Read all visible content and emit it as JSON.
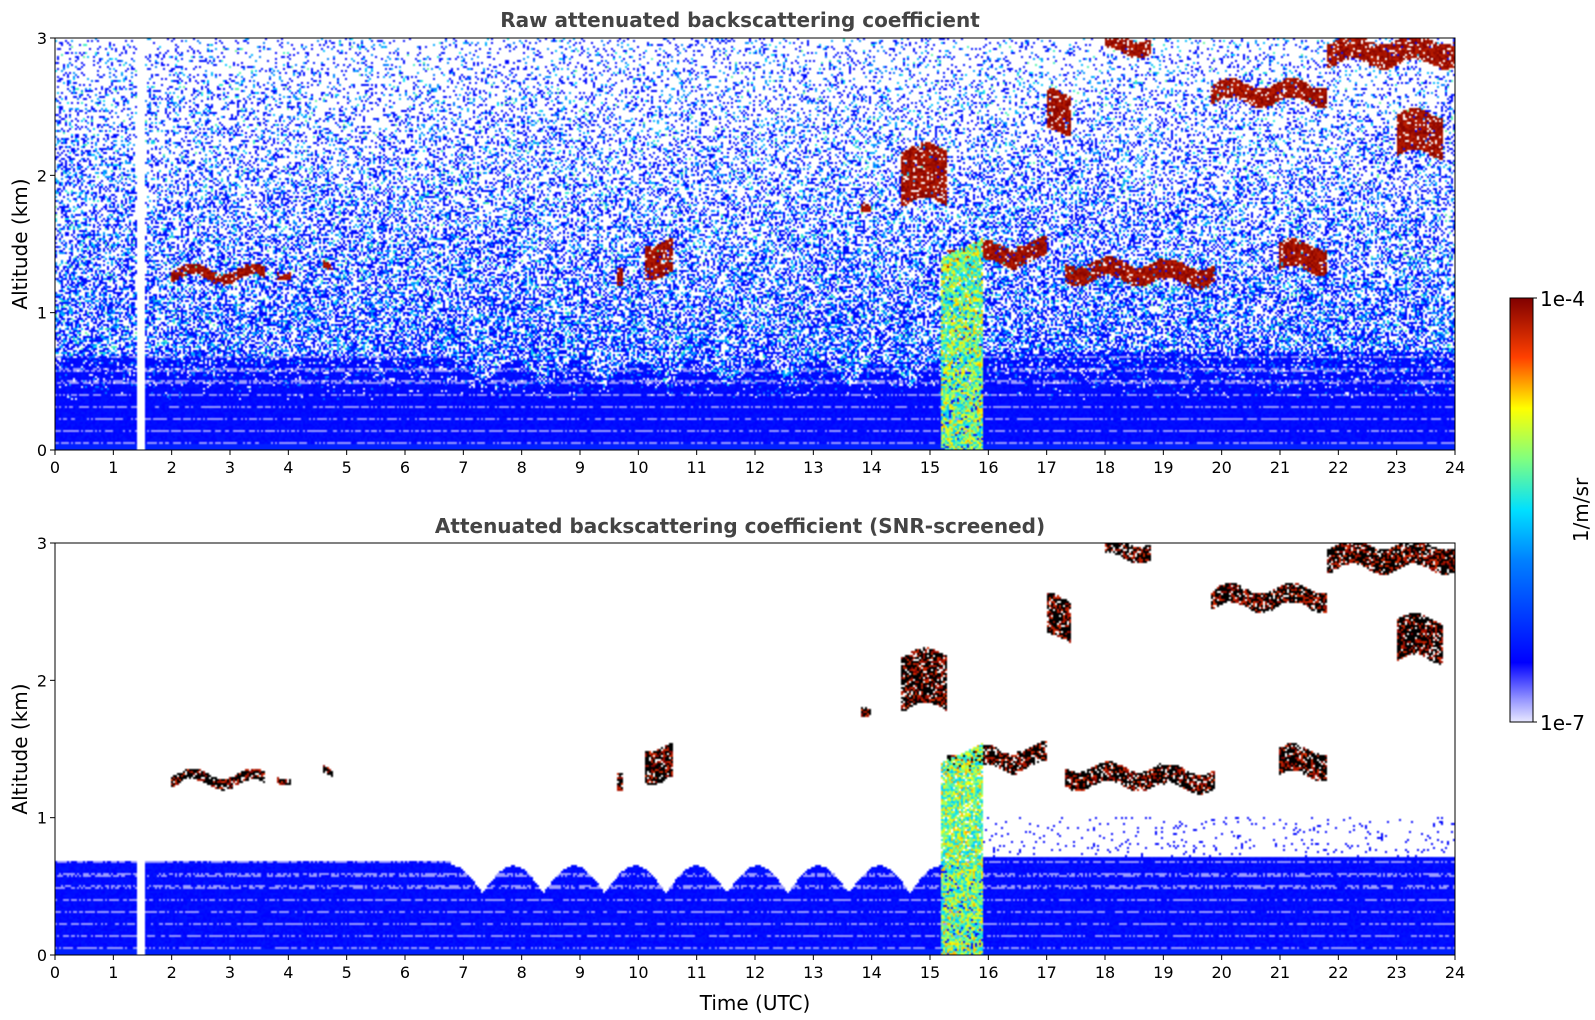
{
  "chart_data": [
    {
      "type": "heatmap",
      "title": "Raw attenuated backscattering coefficient",
      "xlabel": "",
      "ylabel": "Altitude (km)",
      "xlim": [
        0,
        24
      ],
      "ylim": [
        0,
        3
      ],
      "xticks": [
        0,
        1,
        2,
        3,
        4,
        5,
        6,
        7,
        8,
        9,
        10,
        11,
        12,
        13,
        14,
        15,
        16,
        17,
        18,
        19,
        20,
        21,
        22,
        23,
        24
      ],
      "yticks": [
        0,
        1,
        2,
        3
      ],
      "screened": false,
      "features": {
        "data_gap": {
          "start": 1.42,
          "end": 1.55
        },
        "cloud_layers": [
          {
            "t0": 2.0,
            "t1": 3.6,
            "alt": 1.28,
            "thick": 0.08
          },
          {
            "t0": 3.8,
            "t1": 4.05,
            "alt": 1.3,
            "thick": 0.05
          },
          {
            "t0": 4.6,
            "t1": 4.75,
            "alt": 1.33,
            "thick": 0.05
          },
          {
            "t0": 9.65,
            "t1": 9.75,
            "alt": 1.22,
            "thick": 0.12
          },
          {
            "t0": 10.1,
            "t1": 10.6,
            "alt": 1.4,
            "thick": 0.25
          },
          {
            "t0": 13.8,
            "t1": 14.0,
            "alt": 1.73,
            "thick": 0.06
          },
          {
            "t0": 14.5,
            "t1": 15.3,
            "alt": 2.0,
            "thick": 0.4
          },
          {
            "t0": 15.3,
            "t1": 16.5,
            "alt": 1.42,
            "thick": 0.14
          },
          {
            "t0": 16.5,
            "t1": 17.0,
            "alt": 1.45,
            "thick": 0.14
          },
          {
            "t0": 17.0,
            "t1": 17.4,
            "alt": 2.45,
            "thick": 0.3
          },
          {
            "t0": 17.3,
            "t1": 19.0,
            "alt": 1.3,
            "thick": 0.14
          },
          {
            "t0": 19.0,
            "t1": 19.9,
            "alt": 1.28,
            "thick": 0.14
          },
          {
            "t0": 18.0,
            "t1": 18.8,
            "alt": 2.95,
            "thick": 0.12
          },
          {
            "t0": 19.8,
            "t1": 21.8,
            "alt": 2.6,
            "thick": 0.14
          },
          {
            "t0": 21.0,
            "t1": 21.8,
            "alt": 1.4,
            "thick": 0.2
          },
          {
            "t0": 21.8,
            "t1": 24.0,
            "alt": 2.9,
            "thick": 0.18
          },
          {
            "t0": 23.0,
            "t1": 23.8,
            "alt": 2.3,
            "thick": 0.3
          }
        ],
        "precip_shaft": {
          "t0": 15.2,
          "t1": 15.9
        }
      }
    },
    {
      "type": "heatmap",
      "title": "Attenuated backscattering coefficient (SNR-screened)",
      "xlabel": "Time (UTC)",
      "ylabel": "Altitude (km)",
      "xlim": [
        0,
        24
      ],
      "ylim": [
        0,
        3
      ],
      "xticks": [
        0,
        1,
        2,
        3,
        4,
        5,
        6,
        7,
        8,
        9,
        10,
        11,
        12,
        13,
        14,
        15,
        16,
        17,
        18,
        19,
        20,
        21,
        22,
        23,
        24
      ],
      "yticks": [
        0,
        1,
        2,
        3
      ],
      "screened": true
    }
  ],
  "colorbar": {
    "label": "1/m/sr",
    "max_label": "1e-4",
    "min_label": "1e-7",
    "scale": "log",
    "range": [
      1e-07,
      0.0001
    ],
    "colormap": "jet",
    "colors": [
      "#e8e8ff",
      "#0000ff",
      "#00ffff",
      "#ffff00",
      "#ff0000",
      "#800000"
    ]
  }
}
